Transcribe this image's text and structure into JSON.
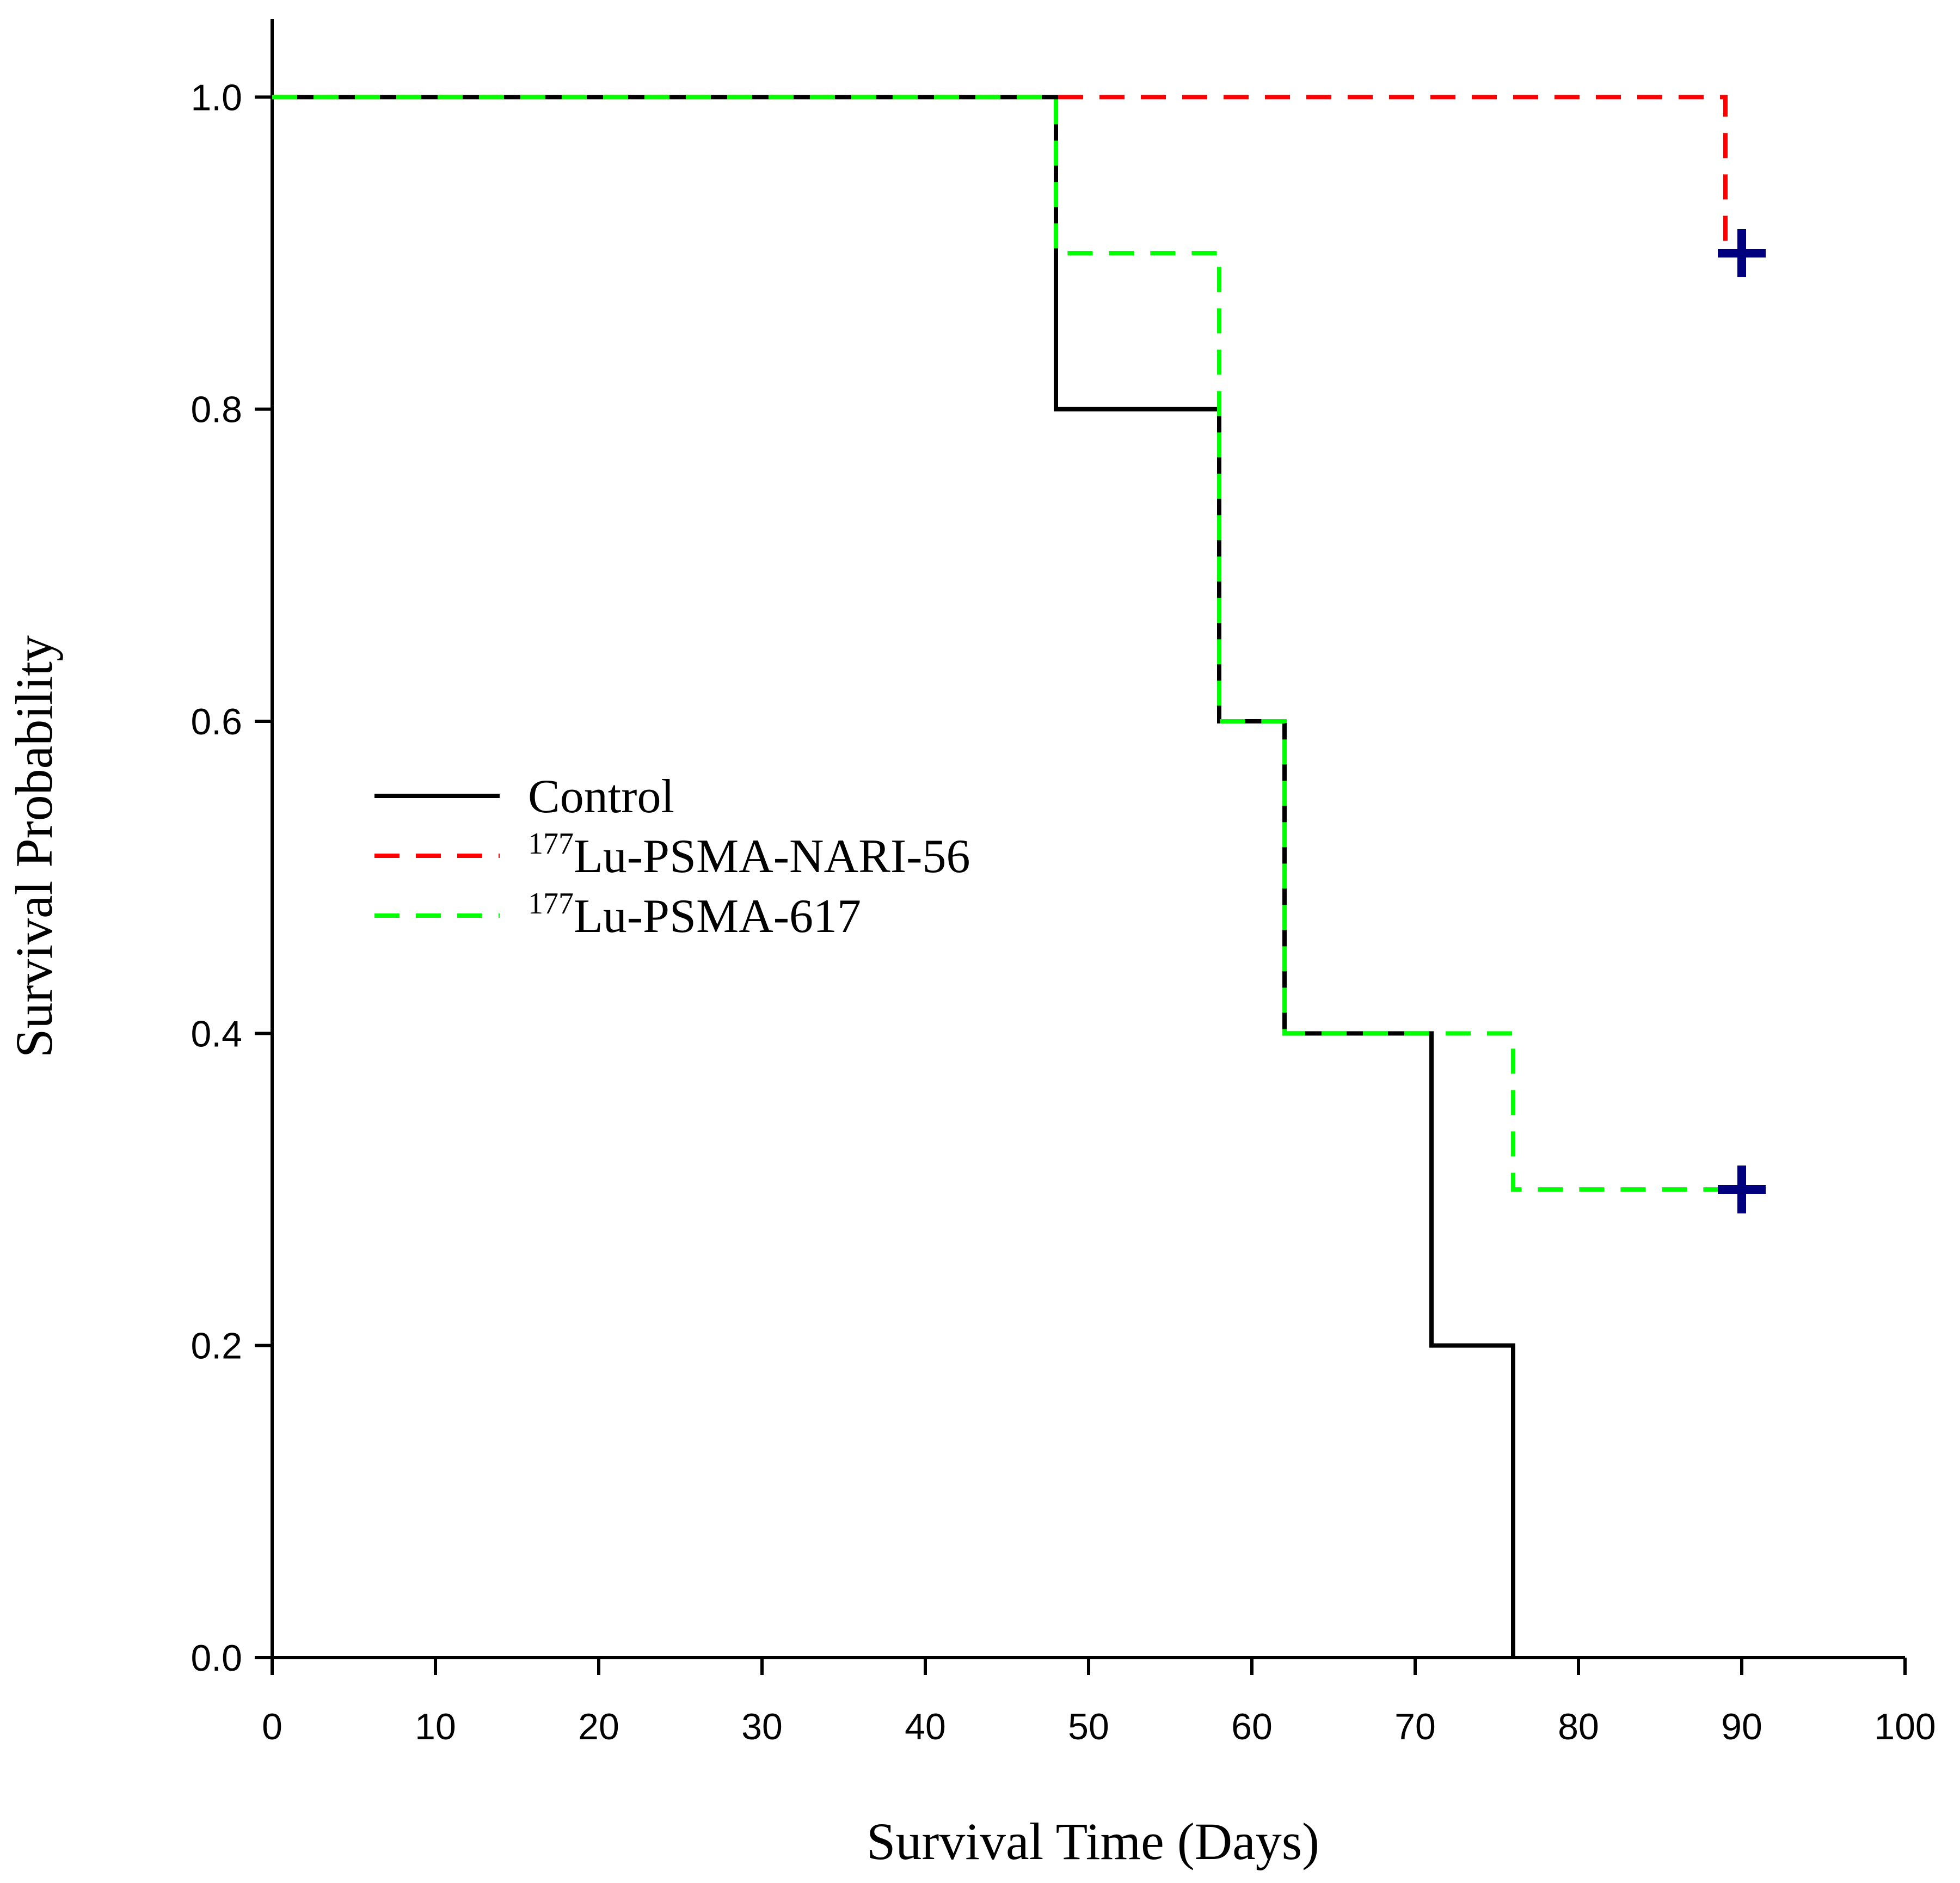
{
  "chart_data": {
    "type": "line",
    "subtype": "kaplan-meier-step",
    "title": "",
    "xlabel": "Survival Time (Days)",
    "ylabel": "Survival Probability",
    "xlim": [
      0,
      100
    ],
    "ylim": [
      0,
      1.05
    ],
    "xticks": [
      0,
      10,
      20,
      30,
      40,
      50,
      60,
      70,
      80,
      90,
      100
    ],
    "xtick_labels": [
      "0",
      "10",
      "20",
      "30",
      "40",
      "50",
      "60",
      "70",
      "80",
      "90",
      "100"
    ],
    "yticks": [
      0,
      0.2,
      0.4,
      0.6,
      0.8,
      1.0
    ],
    "ytick_labels": [
      "0.0",
      "0.2",
      "0.4",
      "0.6",
      "0.8",
      "1.0"
    ],
    "grid": false,
    "legend_position": "center-left",
    "series": [
      {
        "name": "Control",
        "legend_sup": "",
        "legend_main": "Control",
        "color": "#000000",
        "dash": "solid",
        "x": [
          0,
          48,
          58,
          62,
          71,
          76
        ],
        "y": [
          1.0,
          0.8,
          0.6,
          0.4,
          0.2,
          0.0
        ],
        "end_x": 76,
        "censored": []
      },
      {
        "name": "177Lu-PSMA-NARI-56",
        "legend_sup": "177",
        "legend_main": "Lu-PSMA-NARI-56",
        "color": "#ff0000",
        "dash": "dashed",
        "x": [
          0,
          89
        ],
        "y": [
          1.0,
          0.9
        ],
        "end_x": 90,
        "censored": [
          {
            "x": 90,
            "y": 0.9
          }
        ]
      },
      {
        "name": "177Lu-PSMA-617",
        "legend_sup": "177",
        "legend_main": "Lu-PSMA-617",
        "color": "#00ff00",
        "dash": "dashed",
        "x": [
          0,
          48,
          58,
          62,
          76
        ],
        "y": [
          1.0,
          0.9,
          0.6,
          0.4,
          0.3
        ],
        "end_x": 90,
        "censored": [
          {
            "x": 90,
            "y": 0.3
          }
        ]
      }
    ],
    "censor_marker_color": "#00007f"
  }
}
